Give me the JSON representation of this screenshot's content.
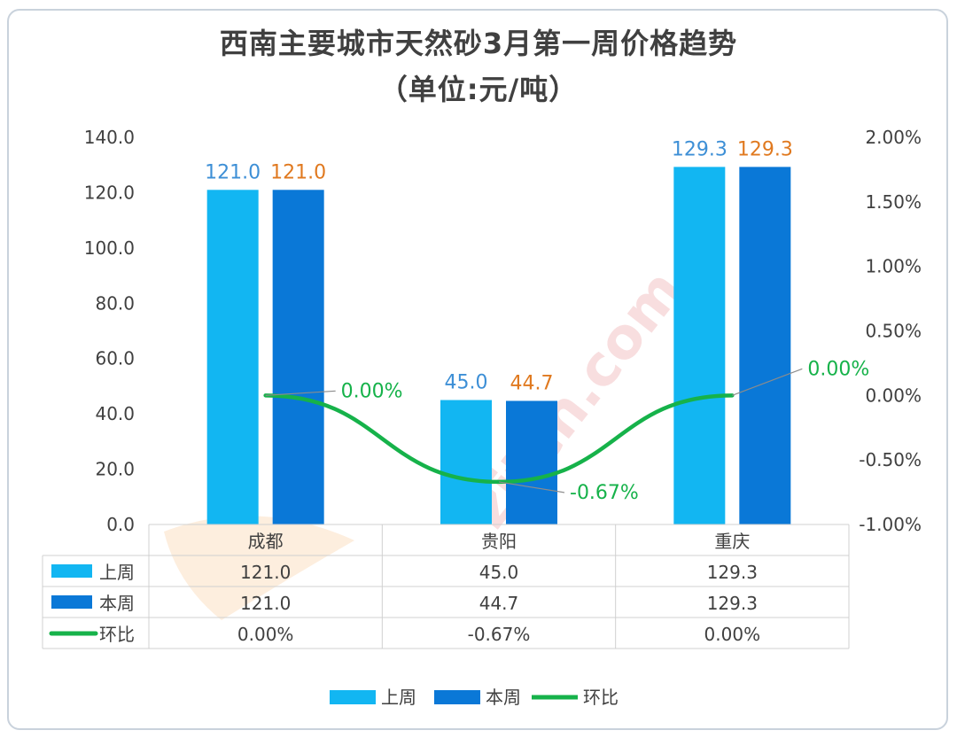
{
  "chart_data": {
    "type": "bar",
    "title_line1": "西南主要城市天然砂3月第一周价格趋势",
    "title_line2": "（单位:元/吨）",
    "categories": [
      "成都",
      "贵阳",
      "重庆"
    ],
    "series": [
      {
        "name": "上周",
        "type": "bar",
        "values": [
          121.0,
          45.0,
          129.3
        ],
        "labels": [
          "121.0",
          "45.0",
          "129.3"
        ],
        "color": "#12b6f2",
        "label_color": "#3d8fd6"
      },
      {
        "name": "本周",
        "type": "bar",
        "values": [
          121.0,
          44.7,
          129.3
        ],
        "labels": [
          "121.0",
          "44.7",
          "129.3"
        ],
        "color": "#0a78d7",
        "label_color": "#e0791f"
      },
      {
        "name": "环比",
        "type": "line",
        "axis": "right",
        "values": [
          0.0,
          -0.67,
          0.0
        ],
        "labels": [
          "0.00%",
          "-0.67%",
          "0.00%"
        ],
        "color": "#16b24a"
      }
    ],
    "y_left": {
      "min": 0,
      "max": 140,
      "step": 20,
      "ticks": [
        "0.0",
        "20.0",
        "40.0",
        "60.0",
        "80.0",
        "100.0",
        "120.0",
        "140.0"
      ]
    },
    "y_right": {
      "min": -1.0,
      "max": 2.0,
      "step": 0.5,
      "ticks": [
        "-1.00%",
        "-0.50%",
        "0.00%",
        "0.50%",
        "1.00%",
        "1.50%",
        "2.00%"
      ]
    },
    "grid": false,
    "legend": "bottom",
    "data_table": true
  },
  "watermark": {
    "text": "zjtcn.com"
  },
  "colors": {
    "title": "#404040",
    "border": "#c9d2dc",
    "table_border": "#d0d0d0"
  }
}
